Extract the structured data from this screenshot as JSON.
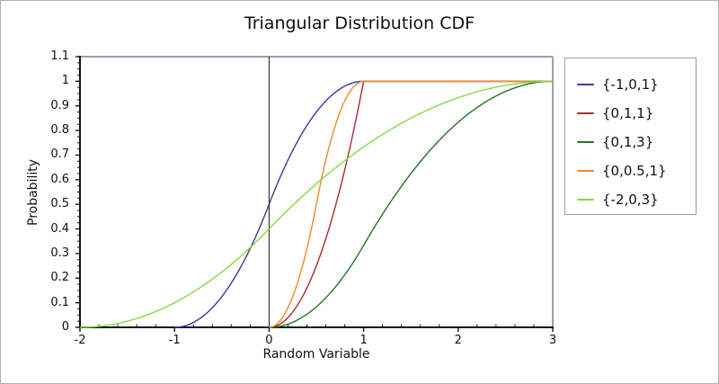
{
  "chart_data": {
    "type": "line",
    "title": "Triangular Distribution CDF",
    "xlabel": "Random Variable",
    "ylabel": "Probability",
    "xlim": [
      -2,
      3
    ],
    "ylim": [
      0,
      1.1
    ],
    "grid": false,
    "legend_position": "right-outside",
    "x_ticks": [
      {
        "v": -2,
        "label": "-2"
      },
      {
        "v": -1,
        "label": "-1"
      },
      {
        "v": 0,
        "label": "0"
      },
      {
        "v": 1,
        "label": "1"
      },
      {
        "v": 2,
        "label": "2"
      },
      {
        "v": 3,
        "label": "3"
      }
    ],
    "y_ticks": [
      {
        "v": 0,
        "label": "0"
      },
      {
        "v": 0.1,
        "label": "0.1"
      },
      {
        "v": 0.2,
        "label": "0.2"
      },
      {
        "v": 0.3,
        "label": "0.3"
      },
      {
        "v": 0.4,
        "label": "0.4"
      },
      {
        "v": 0.5,
        "label": "0.5"
      },
      {
        "v": 0.6,
        "label": "0.6"
      },
      {
        "v": 0.7,
        "label": "0.7"
      },
      {
        "v": 0.8,
        "label": "0.8"
      },
      {
        "v": 0.9,
        "label": "0.9"
      },
      {
        "v": 1,
        "label": "1"
      },
      {
        "v": 1.1,
        "label": "1.1"
      }
    ],
    "x_minor_step": 0.2,
    "y_minor_step": 0.025,
    "vertical_axis_at_x": 0,
    "colors": {
      "axis": "#141414",
      "frame": "#94a2b4",
      "text": "#101010"
    },
    "series": [
      {
        "label": "{-1,0,1}",
        "color": "#3a3aa2",
        "distribution": "triangular",
        "params": {
          "min": -1,
          "mode": 0,
          "max": 1
        }
      },
      {
        "label": "{0,1,1}",
        "color": "#a62d2d",
        "distribution": "triangular",
        "params": {
          "min": 0,
          "mode": 1,
          "max": 1
        }
      },
      {
        "label": "{0,1,3}",
        "color": "#267326",
        "distribution": "triangular",
        "params": {
          "min": 0,
          "mode": 1,
          "max": 3
        }
      },
      {
        "label": "{0,0.5,1}",
        "color": "#f18a28",
        "distribution": "triangular",
        "params": {
          "min": 0,
          "mode": 0.5,
          "max": 1
        }
      },
      {
        "label": "{-2,0,3}",
        "color": "#86da41",
        "distribution": "triangular",
        "params": {
          "min": -2,
          "mode": 0,
          "max": 3
        }
      }
    ]
  }
}
